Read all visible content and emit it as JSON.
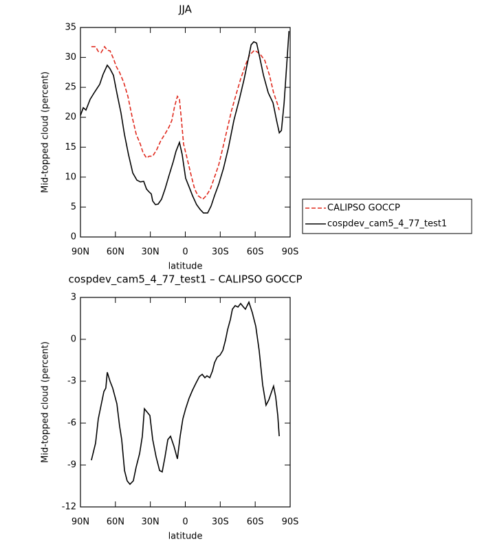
{
  "chart_data": [
    {
      "type": "line",
      "title": "JJA",
      "x_label": "latitude",
      "y_label": "Mid-topped cloud (percent)",
      "xlim": [
        90,
        -90
      ],
      "xticks": [
        {
          "value": 90,
          "label": "90N"
        },
        {
          "value": 60,
          "label": "60N"
        },
        {
          "value": 30,
          "label": "30N"
        },
        0,
        {
          "value": -30,
          "label": "30S"
        },
        {
          "value": -60,
          "label": "60S"
        },
        {
          "value": -90,
          "label": "90S"
        }
      ],
      "ylim": [
        0,
        35
      ],
      "yticks": [
        0,
        5,
        10,
        15,
        20,
        25,
        30,
        35
      ],
      "legend": "right",
      "series": [
        {
          "name": "CALIPSO GOCCP",
          "color": "#e0281c",
          "dashed": true,
          "x": [
            80.6,
            77,
            74.7,
            72.3,
            69.3,
            67,
            64.6,
            61.7,
            59.3,
            56.4,
            52.8,
            49.3,
            45.7,
            42.2,
            38.6,
            36.3,
            33.3,
            31,
            28,
            24.5,
            21,
            17.4,
            13.9,
            11.5,
            9.2,
            6.8,
            5,
            3.3,
            1.5,
            -1.5,
            -5,
            -8,
            -10.9,
            -15,
            -18,
            -21.5,
            -25.1,
            -28.6,
            -32.2,
            -35.7,
            -39.8,
            -44,
            -47.5,
            -51.6,
            -55.2,
            -59.3,
            -64,
            -68.2,
            -72.3,
            -75.8,
            -78.8,
            -80.6
          ],
          "values": [
            31.8,
            31.8,
            31,
            30.8,
            31.8,
            31.2,
            31.1,
            29.8,
            28.5,
            27.5,
            25.8,
            23.5,
            20.1,
            17.2,
            15.5,
            14.1,
            13.2,
            13.5,
            13.5,
            14.6,
            16.1,
            17.2,
            18.4,
            19.5,
            21.8,
            23.5,
            23,
            19.5,
            15.5,
            13.2,
            10.3,
            8,
            6.9,
            6.3,
            6.9,
            8,
            10,
            12,
            14.9,
            17.8,
            21.2,
            24.1,
            26.4,
            28.7,
            30.4,
            31.2,
            30.6,
            29.5,
            27,
            24.1,
            22.4,
            21.2
          ]
        },
        {
          "name": "cospdev_cam5_4_77_test1",
          "color": "#000000",
          "dashed": false,
          "x": [
            90,
            87.6,
            85.3,
            81.7,
            78.2,
            73.5,
            70.5,
            67,
            64.6,
            61.7,
            58.8,
            55.2,
            52.3,
            48.8,
            45.1,
            41.6,
            38.6,
            35.7,
            33.3,
            31,
            29.2,
            28,
            25.7,
            23.3,
            20.4,
            17.4,
            13.9,
            10.3,
            8,
            5,
            2.7,
            -0.3,
            -3.2,
            -6.2,
            -9.7,
            -12.7,
            -15.6,
            -19.2,
            -22.2,
            -25.1,
            -28.7,
            -32.8,
            -37,
            -41.7,
            -46.4,
            -50.5,
            -54.1,
            -56.5,
            -58.8,
            -61.2,
            -64.1,
            -67.1,
            -71.2,
            -75.3,
            -78.3,
            -80.7,
            -82.5,
            -84.8,
            -87.2,
            -89
          ],
          "values": [
            20.3,
            21.6,
            21.2,
            23,
            24.1,
            25.5,
            27.2,
            28.7,
            28.1,
            27,
            24.1,
            20.7,
            17.2,
            13.8,
            10.7,
            9.5,
            9.2,
            9.3,
            8,
            7.5,
            7.2,
            6,
            5.4,
            5.5,
            6.3,
            8,
            10.3,
            12.6,
            14.3,
            15.8,
            13.8,
            9.8,
            8.4,
            6.9,
            5.4,
            4.6,
            4,
            4,
            5.2,
            6.9,
            8.8,
            11.5,
            14.9,
            19.5,
            23,
            26.4,
            29.8,
            32.1,
            32.6,
            32.4,
            29.8,
            27,
            24.1,
            22.4,
            19.5,
            17.4,
            17.8,
            22.4,
            29.3,
            34.4
          ]
        }
      ]
    },
    {
      "type": "line",
      "title": "cospdev_cam5_4_77_test1 – CALIPSO GOCCP",
      "x_label": "latitude",
      "y_label": "Mid-topped cloud (percent)",
      "xlim": [
        90,
        -90
      ],
      "xticks": [
        {
          "value": 90,
          "label": "90N"
        },
        {
          "value": 60,
          "label": "60N"
        },
        {
          "value": 30,
          "label": "30N"
        },
        0,
        {
          "value": -30,
          "label": "30S"
        },
        {
          "value": -60,
          "label": "60S"
        },
        {
          "value": -90,
          "label": "90S"
        }
      ],
      "ylim": [
        -12,
        3
      ],
      "yticks": [
        -12,
        -9,
        -6,
        -3,
        0,
        3
      ],
      "color": "#000000",
      "x": [
        80.6,
        77,
        74.7,
        72.3,
        69.9,
        68.2,
        67,
        64.6,
        62.3,
        58.7,
        56.4,
        54.6,
        52.2,
        49.9,
        47.5,
        44.6,
        42.2,
        39.2,
        36.9,
        35.1,
        32.8,
        30.4,
        28,
        25.1,
        22.1,
        19.8,
        17.4,
        15,
        12.7,
        9.7,
        6.8,
        4.4,
        2.1,
        -0.3,
        -3.2,
        -6.2,
        -9.1,
        -12.1,
        -14.5,
        -16.8,
        -18.6,
        -21,
        -23.3,
        -25.1,
        -27.4,
        -29.8,
        -32.2,
        -34.5,
        -36.3,
        -38.7,
        -40.4,
        -42.8,
        -45.2,
        -47.5,
        -49.9,
        -51.6,
        -54.6,
        -57.5,
        -60.5,
        -63.4,
        -66.4,
        -69.3,
        -71.7,
        -74.1,
        -75.8,
        -77.6,
        -79.4,
        -80.6
      ],
      "values": [
        -8.66,
        -7.43,
        -5.71,
        -4.72,
        -3.74,
        -3.49,
        -2.36,
        -3,
        -3.49,
        -4.62,
        -6.2,
        -7.18,
        -9.4,
        -10.13,
        -10.38,
        -10.13,
        -9.15,
        -8.17,
        -6.94,
        -4.97,
        -5.21,
        -5.46,
        -7.18,
        -8.41,
        -9.4,
        -9.49,
        -8.41,
        -7.18,
        -6.94,
        -7.67,
        -8.56,
        -6.94,
        -5.71,
        -4.97,
        -4.23,
        -3.64,
        -3.15,
        -2.66,
        -2.51,
        -2.75,
        -2.61,
        -2.75,
        -2.26,
        -1.67,
        -1.28,
        -1.13,
        -0.79,
        -0.05,
        0.69,
        1.43,
        2.16,
        2.41,
        2.31,
        2.56,
        2.31,
        2.16,
        2.66,
        1.92,
        0.93,
        -0.79,
        -3.25,
        -4.72,
        -4.33,
        -3.74,
        -3.35,
        -4.13,
        -5.46,
        -6.94
      ]
    }
  ]
}
